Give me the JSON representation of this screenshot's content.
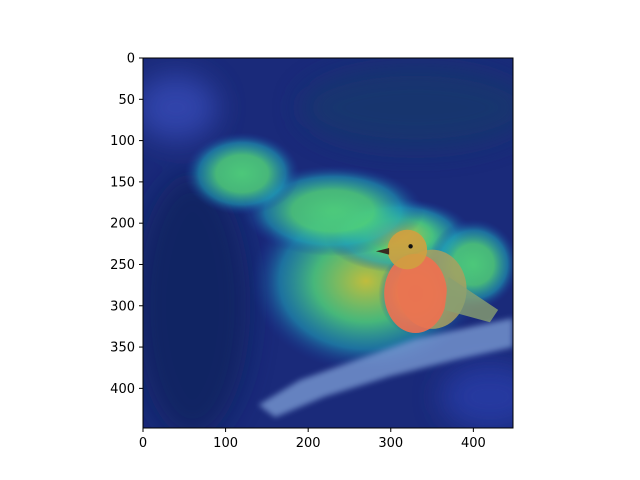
{
  "chart_data": {
    "type": "heatmap",
    "title": "",
    "xlabel": "",
    "ylabel": "",
    "image_extent": [
      0,
      448,
      448,
      0
    ],
    "xlim": [
      0,
      448
    ],
    "ylim": [
      448,
      0
    ],
    "x_ticks": [
      0,
      100,
      200,
      300,
      400
    ],
    "y_ticks": [
      0,
      50,
      100,
      150,
      200,
      250,
      300,
      350,
      400
    ],
    "x_tick_labels": [
      "0",
      "100",
      "200",
      "300",
      "400"
    ],
    "y_tick_labels": [
      "0",
      "50",
      "100",
      "150",
      "200",
      "250",
      "300",
      "350",
      "400"
    ],
    "colormap": "jet",
    "overlay": "attention heatmap over photo of a small orange-breasted bird perched on a branch",
    "hotspots": [
      {
        "x": 270,
        "y": 270,
        "rx": 140,
        "ry": 110,
        "intensity": 0.55
      },
      {
        "x": 310,
        "y": 215,
        "rx": 90,
        "ry": 45,
        "intensity": 0.6
      },
      {
        "x": 230,
        "y": 185,
        "rx": 110,
        "ry": 55,
        "intensity": 0.5
      },
      {
        "x": 330,
        "y": 285,
        "rx": 45,
        "ry": 50,
        "intensity": 0.95
      },
      {
        "x": 120,
        "y": 140,
        "rx": 70,
        "ry": 50,
        "intensity": 0.42
      },
      {
        "x": 400,
        "y": 250,
        "rx": 55,
        "ry": 55,
        "intensity": 0.45
      }
    ],
    "bird": {
      "x": 330,
      "y": 285,
      "body_rx": 38,
      "body_ry": 48,
      "head_x": 320,
      "head_y": 232,
      "head_r": 24
    },
    "branch": {
      "points": [
        [
          140,
          420
        ],
        [
          190,
          390
        ],
        [
          260,
          365
        ],
        [
          330,
          340
        ],
        [
          400,
          325
        ],
        [
          448,
          315
        ],
        [
          448,
          350
        ],
        [
          380,
          365
        ],
        [
          300,
          385
        ],
        [
          220,
          410
        ],
        [
          160,
          435
        ]
      ]
    },
    "colors": {
      "background": "#1a2a7a",
      "cold": "#1b3a9c",
      "cool": "#1fa0b8",
      "mid": "#4fd07a",
      "warm": "#c9c43a",
      "hot": "#e8603a",
      "bird_breast": "#f07050",
      "branch": "#7fa0d8"
    }
  }
}
